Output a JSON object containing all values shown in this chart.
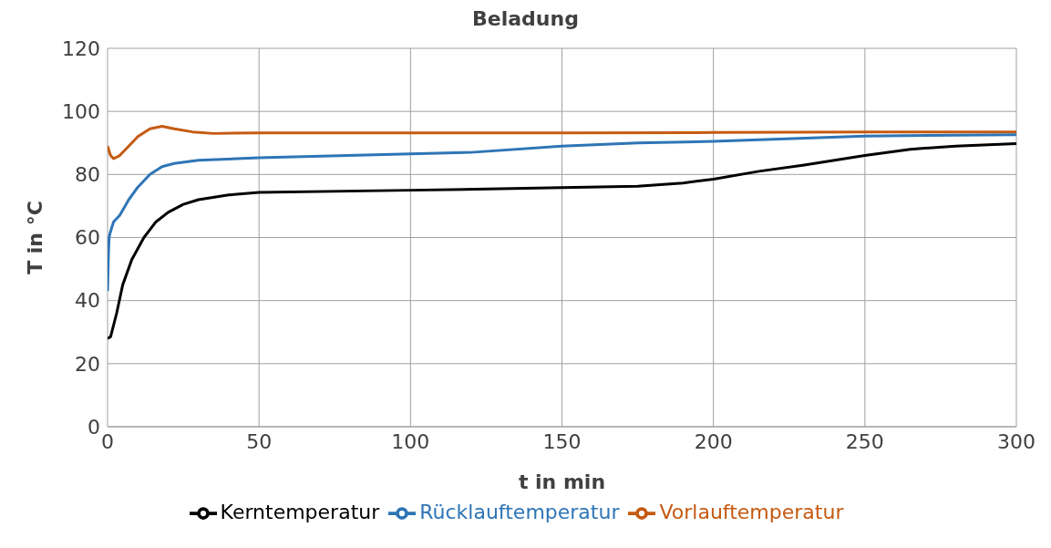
{
  "chart_data": {
    "type": "line",
    "title": "Beladung",
    "xlabel": "t in min",
    "ylabel": "T in °C",
    "xlim": [
      0,
      300
    ],
    "xticks": [
      0,
      50,
      100,
      150,
      200,
      250,
      300
    ],
    "ylim": [
      0,
      120
    ],
    "yticks": [
      0,
      20,
      40,
      60,
      80,
      100,
      120
    ],
    "grid": true,
    "legend": "bottom",
    "marker": "none",
    "line_style": "solid",
    "series": [
      {
        "name": "Vorlauftemperatur",
        "color": "#c55a11",
        "x": [
          0,
          1,
          2,
          4,
          7,
          10,
          14,
          18,
          22,
          28,
          35,
          50,
          100,
          150,
          200,
          250,
          300
        ],
        "values": [
          89,
          86,
          85,
          86,
          89,
          92,
          94.5,
          95.3,
          94.5,
          93.5,
          93,
          93.2,
          93.2,
          93.2,
          93.3,
          93.5,
          93.5
        ]
      },
      {
        "name": "Rücklauftemperatur",
        "color": "#2e75b6",
        "x": [
          0,
          0.3,
          0.5,
          1,
          2,
          4,
          7,
          10,
          14,
          18,
          22,
          30,
          50,
          100,
          120,
          150,
          175,
          200,
          250,
          300
        ],
        "values": [
          43,
          55,
          60,
          62,
          65,
          67,
          72,
          76,
          80,
          82.5,
          83.5,
          84.5,
          85.3,
          86.5,
          87,
          89,
          90,
          90.5,
          92.2,
          92.6
        ]
      },
      {
        "name": "Kerntemperatur",
        "color": "#000000",
        "x": [
          0,
          1,
          3,
          5,
          8,
          12,
          16,
          20,
          25,
          30,
          40,
          50,
          100,
          150,
          175,
          190,
          200,
          215,
          230,
          250,
          265,
          280,
          300
        ],
        "values": [
          28,
          28.5,
          36,
          45,
          53,
          60,
          65,
          68,
          70.5,
          72,
          73.5,
          74.3,
          75,
          75.8,
          76.3,
          77.3,
          78.5,
          81,
          83,
          86,
          88,
          89,
          89.8
        ]
      }
    ]
  }
}
